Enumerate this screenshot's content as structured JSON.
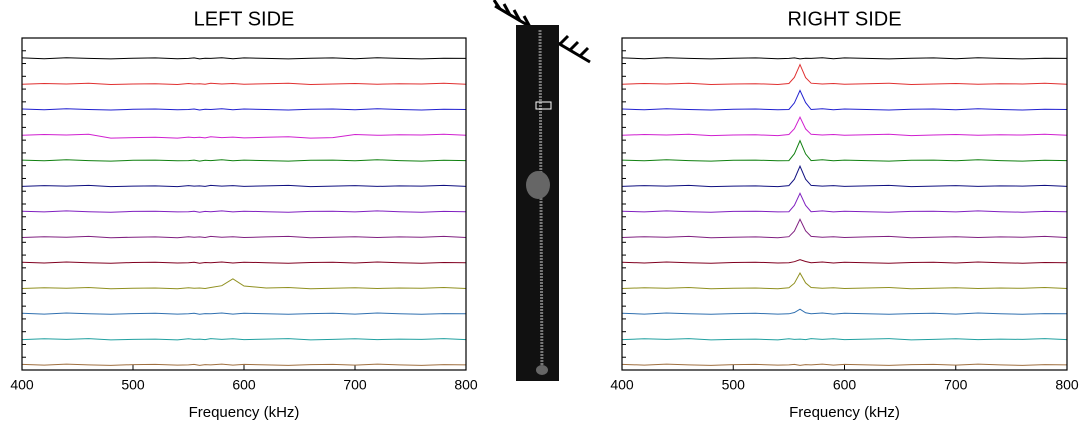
{
  "chart_data": [
    {
      "type": "line",
      "title": "LEFT SIDE",
      "x_label": "Frequency (kHz)",
      "x": [
        400,
        420,
        440,
        460,
        480,
        500,
        520,
        540,
        550,
        555,
        560,
        565,
        570,
        580,
        590,
        600,
        620,
        640,
        660,
        680,
        700,
        720,
        740,
        760,
        780,
        800
      ],
      "xlim": [
        400,
        800
      ],
      "xticks": [
        400,
        500,
        600,
        700,
        800
      ],
      "ylim": [
        0,
        13
      ],
      "yticks": [
        0,
        0.5,
        1,
        1.5,
        2,
        2.5,
        3,
        3.5,
        4,
        4.5,
        5,
        5.5,
        6,
        6.5,
        7,
        7.5,
        8,
        8.5,
        9,
        9.5,
        10,
        10.5,
        11,
        11.5,
        12,
        12.5,
        13
      ],
      "series": [
        {
          "color": "#000000",
          "values": [
            12.22,
            12.19,
            12.23,
            12.2,
            12.18,
            12.21,
            12.22,
            12.19,
            12.2,
            12.22,
            12.18,
            12.21,
            12.2,
            12.23,
            12.19,
            12.22,
            12.2,
            12.18,
            12.21,
            12.22,
            12.19,
            12.23,
            12.2,
            12.18,
            12.21,
            12.2
          ]
        },
        {
          "color": "#e03030",
          "values": [
            11.19,
            11.22,
            11.2,
            11.23,
            11.18,
            11.2,
            11.21,
            11.18,
            11.22,
            11.2,
            11.21,
            11.19,
            11.23,
            11.2,
            11.22,
            11.19,
            11.21,
            11.23,
            11.18,
            11.2,
            11.22,
            11.19,
            11.21,
            11.2,
            11.23,
            11.19
          ]
        },
        {
          "color": "#2020d0",
          "values": [
            10.22,
            10.19,
            10.23,
            10.2,
            10.18,
            10.21,
            10.22,
            10.19,
            10.2,
            10.22,
            10.18,
            10.21,
            10.2,
            10.23,
            10.19,
            10.22,
            10.2,
            10.18,
            10.21,
            10.22,
            10.19,
            10.23,
            10.2,
            10.18,
            10.21,
            10.2
          ]
        },
        {
          "color": "#d020d0",
          "values": [
            9.19,
            9.22,
            9.2,
            9.23,
            9.08,
            9.1,
            9.11,
            9.08,
            9.12,
            9.1,
            9.11,
            9.09,
            9.13,
            9.1,
            9.12,
            9.09,
            9.11,
            9.13,
            9.08,
            9.1,
            9.22,
            9.19,
            9.21,
            9.2,
            9.23,
            9.19
          ]
        },
        {
          "color": "#108010",
          "values": [
            8.22,
            8.19,
            8.23,
            8.2,
            8.18,
            8.21,
            8.22,
            8.19,
            8.2,
            8.22,
            8.18,
            8.21,
            8.2,
            8.23,
            8.19,
            8.22,
            8.2,
            8.18,
            8.21,
            8.22,
            8.19,
            8.23,
            8.2,
            8.18,
            8.21,
            8.2
          ]
        },
        {
          "color": "#101080",
          "values": [
            7.19,
            7.22,
            7.2,
            7.23,
            7.18,
            7.2,
            7.21,
            7.18,
            7.22,
            7.2,
            7.21,
            7.19,
            7.23,
            7.2,
            7.22,
            7.19,
            7.21,
            7.23,
            7.18,
            7.2,
            7.22,
            7.19,
            7.21,
            7.2,
            7.23,
            7.19
          ]
        },
        {
          "color": "#8020c0",
          "values": [
            6.22,
            6.19,
            6.23,
            6.2,
            6.18,
            6.21,
            6.22,
            6.19,
            6.2,
            6.22,
            6.18,
            6.21,
            6.2,
            6.23,
            6.19,
            6.22,
            6.2,
            6.18,
            6.21,
            6.22,
            6.19,
            6.23,
            6.2,
            6.18,
            6.21,
            6.2
          ]
        },
        {
          "color": "#802080",
          "values": [
            5.19,
            5.22,
            5.2,
            5.23,
            5.18,
            5.2,
            5.21,
            5.18,
            5.22,
            5.2,
            5.21,
            5.19,
            5.23,
            5.2,
            5.22,
            5.19,
            5.21,
            5.23,
            5.18,
            5.2,
            5.22,
            5.19,
            5.21,
            5.2,
            5.23,
            5.19
          ]
        },
        {
          "color": "#800020",
          "values": [
            4.22,
            4.19,
            4.23,
            4.2,
            4.18,
            4.21,
            4.22,
            4.19,
            4.2,
            4.22,
            4.18,
            4.21,
            4.2,
            4.23,
            4.19,
            4.22,
            4.2,
            4.18,
            4.21,
            4.22,
            4.19,
            4.23,
            4.2,
            4.18,
            4.21,
            4.2
          ]
        },
        {
          "color": "#909020",
          "values": [
            3.19,
            3.22,
            3.2,
            3.23,
            3.18,
            3.2,
            3.21,
            3.18,
            3.22,
            3.2,
            3.21,
            3.19,
            3.23,
            3.3,
            3.57,
            3.29,
            3.21,
            3.23,
            3.18,
            3.2,
            3.22,
            3.19,
            3.21,
            3.2,
            3.23,
            3.19
          ]
        },
        {
          "color": "#3070b0",
          "values": [
            2.22,
            2.19,
            2.23,
            2.2,
            2.18,
            2.21,
            2.22,
            2.19,
            2.2,
            2.22,
            2.18,
            2.21,
            2.2,
            2.23,
            2.19,
            2.22,
            2.2,
            2.18,
            2.21,
            2.22,
            2.19,
            2.23,
            2.2,
            2.18,
            2.21,
            2.2
          ]
        },
        {
          "color": "#20a0a0",
          "values": [
            1.19,
            1.22,
            1.2,
            1.23,
            1.18,
            1.2,
            1.21,
            1.18,
            1.22,
            1.2,
            1.21,
            1.19,
            1.23,
            1.2,
            1.22,
            1.19,
            1.21,
            1.23,
            1.18,
            1.2,
            1.22,
            1.19,
            1.21,
            1.2,
            1.23,
            1.19
          ]
        },
        {
          "color": "#a07040",
          "values": [
            0.22,
            0.19,
            0.23,
            0.2,
            0.18,
            0.21,
            0.22,
            0.19,
            0.2,
            0.22,
            0.18,
            0.21,
            0.2,
            0.23,
            0.19,
            0.22,
            0.2,
            0.18,
            0.21,
            0.22,
            0.19,
            0.23,
            0.2,
            0.18,
            0.21,
            0.2
          ]
        }
      ]
    },
    {
      "type": "line",
      "title": "RIGHT SIDE",
      "x_label": "Frequency (kHz)",
      "x": [
        400,
        420,
        440,
        460,
        480,
        500,
        520,
        540,
        550,
        555,
        560,
        565,
        570,
        580,
        590,
        600,
        620,
        640,
        660,
        680,
        700,
        720,
        740,
        760,
        780,
        800
      ],
      "xlim": [
        400,
        800
      ],
      "xticks": [
        400,
        500,
        600,
        700,
        800
      ],
      "ylim": [
        0,
        13
      ],
      "yticks": [
        0,
        0.5,
        1,
        1.5,
        2,
        2.5,
        3,
        3.5,
        4,
        4.5,
        5,
        5.5,
        6,
        6.5,
        7,
        7.5,
        8,
        8.5,
        9,
        9.5,
        10,
        10.5,
        11,
        11.5,
        12,
        12.5,
        13
      ],
      "series": [
        {
          "color": "#000000",
          "values": [
            12.22,
            12.19,
            12.23,
            12.2,
            12.18,
            12.21,
            12.22,
            12.19,
            12.2,
            12.22,
            12.18,
            12.21,
            12.2,
            12.23,
            12.19,
            12.22,
            12.2,
            12.18,
            12.21,
            12.22,
            12.19,
            12.23,
            12.2,
            12.18,
            12.21,
            12.2
          ]
        },
        {
          "color": "#e03030",
          "values": [
            11.19,
            11.22,
            11.2,
            11.23,
            11.18,
            11.2,
            11.21,
            11.18,
            11.22,
            11.46,
            11.96,
            11.45,
            11.23,
            11.2,
            11.22,
            11.19,
            11.21,
            11.23,
            11.18,
            11.2,
            11.22,
            11.19,
            11.21,
            11.2,
            11.23,
            11.19
          ]
        },
        {
          "color": "#2020d0",
          "values": [
            10.22,
            10.19,
            10.23,
            10.2,
            10.18,
            10.21,
            10.22,
            10.19,
            10.2,
            10.46,
            10.95,
            10.47,
            10.2,
            10.23,
            10.19,
            10.22,
            10.2,
            10.18,
            10.21,
            10.22,
            10.19,
            10.23,
            10.2,
            10.18,
            10.21,
            10.2
          ]
        },
        {
          "color": "#d020d0",
          "values": [
            9.19,
            9.22,
            9.2,
            9.23,
            9.18,
            9.2,
            9.21,
            9.18,
            9.22,
            9.45,
            9.9,
            9.44,
            9.23,
            9.2,
            9.22,
            9.19,
            9.21,
            9.23,
            9.18,
            9.2,
            9.22,
            9.19,
            9.21,
            9.2,
            9.23,
            9.19
          ]
        },
        {
          "color": "#108010",
          "values": [
            8.22,
            8.19,
            8.23,
            8.2,
            8.18,
            8.21,
            8.22,
            8.19,
            8.2,
            8.47,
            8.98,
            8.46,
            8.2,
            8.23,
            8.19,
            8.22,
            8.2,
            8.18,
            8.21,
            8.22,
            8.19,
            8.23,
            8.2,
            8.18,
            8.21,
            8.2
          ]
        },
        {
          "color": "#101080",
          "values": [
            7.19,
            7.22,
            7.2,
            7.23,
            7.18,
            7.2,
            7.21,
            7.18,
            7.22,
            7.47,
            7.98,
            7.47,
            7.23,
            7.2,
            7.22,
            7.19,
            7.21,
            7.23,
            7.18,
            7.2,
            7.22,
            7.19,
            7.21,
            7.2,
            7.23,
            7.19
          ]
        },
        {
          "color": "#8020c0",
          "values": [
            6.22,
            6.19,
            6.23,
            6.2,
            6.18,
            6.21,
            6.22,
            6.19,
            6.2,
            6.45,
            6.92,
            6.45,
            6.2,
            6.23,
            6.19,
            6.22,
            6.2,
            6.18,
            6.21,
            6.22,
            6.19,
            6.23,
            6.2,
            6.18,
            6.21,
            6.2
          ]
        },
        {
          "color": "#802080",
          "values": [
            5.19,
            5.22,
            5.2,
            5.23,
            5.18,
            5.2,
            5.21,
            5.18,
            5.22,
            5.44,
            5.9,
            5.45,
            5.23,
            5.2,
            5.22,
            5.19,
            5.21,
            5.23,
            5.18,
            5.2,
            5.22,
            5.19,
            5.21,
            5.2,
            5.23,
            5.19
          ]
        },
        {
          "color": "#800020",
          "values": [
            4.22,
            4.19,
            4.23,
            4.2,
            4.18,
            4.21,
            4.22,
            4.19,
            4.2,
            4.24,
            4.32,
            4.25,
            4.2,
            4.23,
            4.19,
            4.22,
            4.2,
            4.18,
            4.21,
            4.22,
            4.19,
            4.23,
            4.2,
            4.18,
            4.21,
            4.2
          ]
        },
        {
          "color": "#909020",
          "values": [
            3.19,
            3.22,
            3.2,
            3.23,
            3.18,
            3.2,
            3.21,
            3.18,
            3.22,
            3.4,
            3.8,
            3.41,
            3.23,
            3.2,
            3.22,
            3.19,
            3.21,
            3.23,
            3.18,
            3.2,
            3.22,
            3.19,
            3.21,
            3.2,
            3.23,
            3.19
          ]
        },
        {
          "color": "#3070b0",
          "values": [
            2.22,
            2.19,
            2.23,
            2.2,
            2.18,
            2.21,
            2.22,
            2.19,
            2.2,
            2.25,
            2.38,
            2.24,
            2.2,
            2.23,
            2.19,
            2.22,
            2.2,
            2.18,
            2.21,
            2.22,
            2.19,
            2.23,
            2.2,
            2.18,
            2.21,
            2.2
          ]
        },
        {
          "color": "#20a0a0",
          "values": [
            1.19,
            1.22,
            1.2,
            1.23,
            1.18,
            1.2,
            1.21,
            1.18,
            1.22,
            1.2,
            1.21,
            1.19,
            1.23,
            1.2,
            1.22,
            1.19,
            1.21,
            1.23,
            1.18,
            1.2,
            1.22,
            1.19,
            1.21,
            1.2,
            1.23,
            1.19
          ]
        },
        {
          "color": "#a07040",
          "values": [
            0.22,
            0.19,
            0.23,
            0.2,
            0.18,
            0.21,
            0.22,
            0.19,
            0.2,
            0.22,
            0.18,
            0.21,
            0.2,
            0.23,
            0.19,
            0.22,
            0.2,
            0.18,
            0.21,
            0.22,
            0.19,
            0.23,
            0.2,
            0.18,
            0.21,
            0.2
          ]
        }
      ]
    }
  ]
}
